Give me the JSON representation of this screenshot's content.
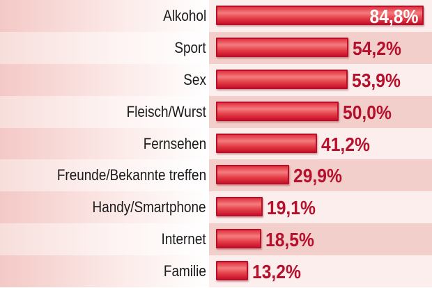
{
  "chart_data": {
    "type": "bar",
    "orientation": "horizontal",
    "categories": [
      "Alkohol",
      "Sport",
      "Sex",
      "Fleisch/Wurst",
      "Fernsehen",
      "Freunde/Bekannte treffen",
      "Handy/Smartphone",
      "Internet",
      "Familie"
    ],
    "values": [
      84.8,
      54.2,
      53.9,
      50.0,
      41.2,
      29.9,
      19.1,
      18.5,
      13.2
    ],
    "value_labels": [
      "84,8%",
      "54,2%",
      "53,9%",
      "50,0%",
      "41,2%",
      "29,9%",
      "19,1%",
      "18,5%",
      "13,2%"
    ],
    "unit": "%",
    "xlim": [
      0,
      85
    ],
    "grid": false,
    "colors": {
      "bar": "#e0303f",
      "bar_border": "#b8102a",
      "value_text": "#b5102c",
      "label_text": "#1a1a1a"
    }
  }
}
